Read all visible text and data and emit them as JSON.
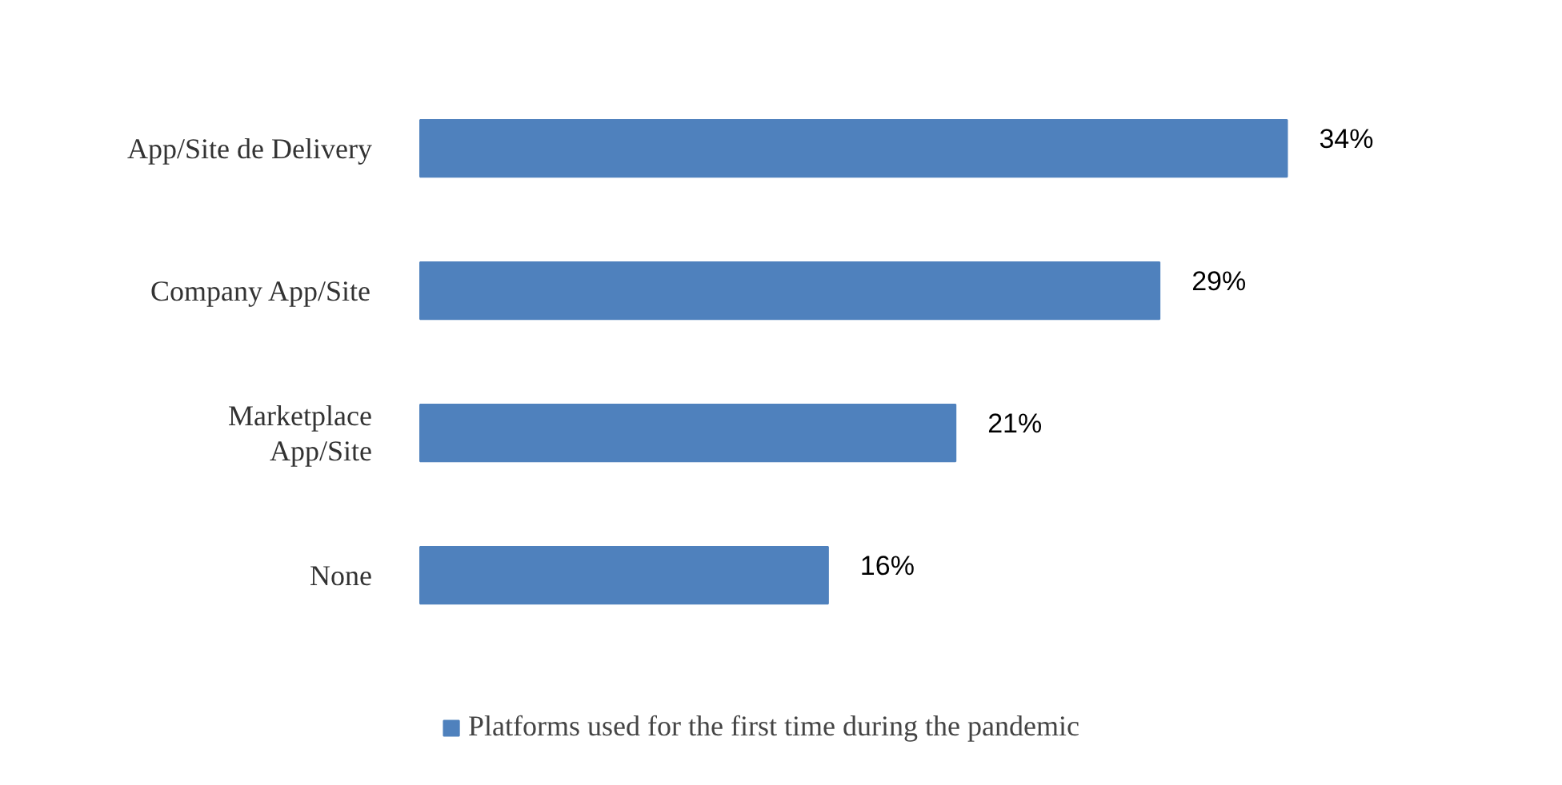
{
  "chart_data": {
    "type": "bar",
    "orientation": "horizontal",
    "categories": [
      "App/Site de Delivery",
      "Company App/Site",
      "Marketplace\nApp/Site",
      "None"
    ],
    "series": [
      {
        "name": "Platforms used for the first time during the pandemic",
        "color": "#4f81bd",
        "values": [
          34,
          29,
          21,
          16
        ],
        "value_labels": [
          "34%",
          "29%",
          "21%",
          "16%"
        ]
      }
    ],
    "legend": "bottom"
  }
}
